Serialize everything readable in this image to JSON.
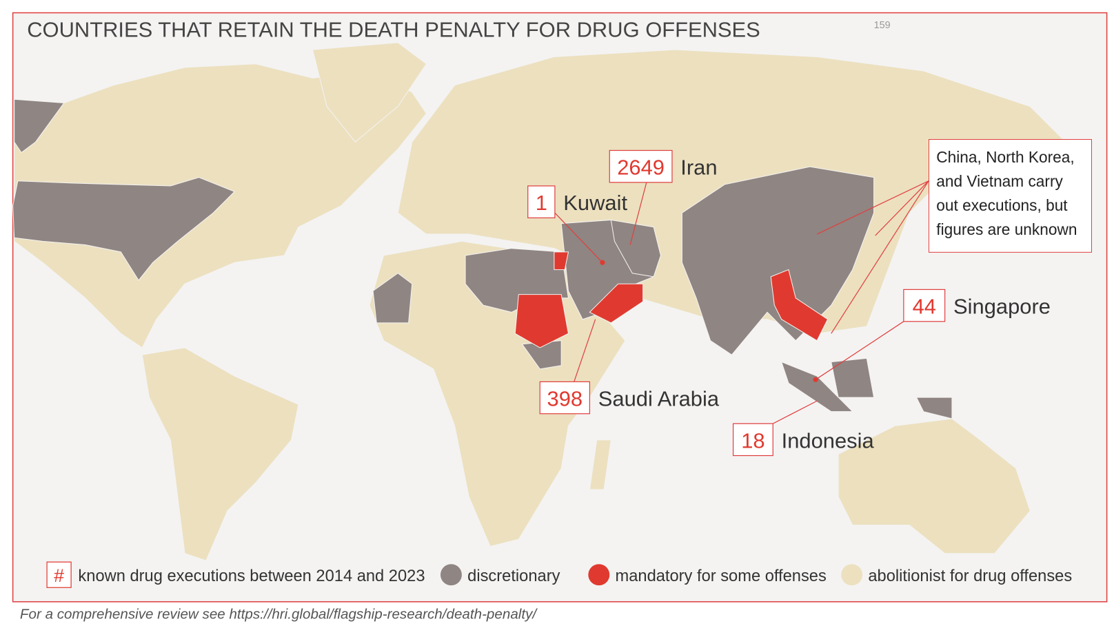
{
  "title": "COUNTRIES THAT RETAIN THE DEATH PENALTY FOR DRUG OFFENSES",
  "title_note": "159",
  "callouts": [
    {
      "count": 2649,
      "country": "Iran"
    },
    {
      "count": 1,
      "country": "Kuwait"
    },
    {
      "count": 398,
      "country": "Saudi Arabia"
    },
    {
      "count": 44,
      "country": "Singapore"
    },
    {
      "count": 18,
      "country": "Indonesia"
    }
  ],
  "note": "China, North Korea, and Vietnam carry out executions, but figures are unknown",
  "legend": [
    {
      "symbol": "#",
      "label": "known drug executions between 2014 and 2023",
      "color": "#e03a30"
    },
    {
      "label": "discretionary",
      "color": "#8f8582"
    },
    {
      "label": "mandatory for some offenses",
      "color": "#e03a30"
    },
    {
      "label": "abolitionist for drug offenses",
      "color": "#ece0bf"
    }
  ],
  "footer": "For a comprehensive review see https://hri.global/flagship-research/death-penalty/"
}
